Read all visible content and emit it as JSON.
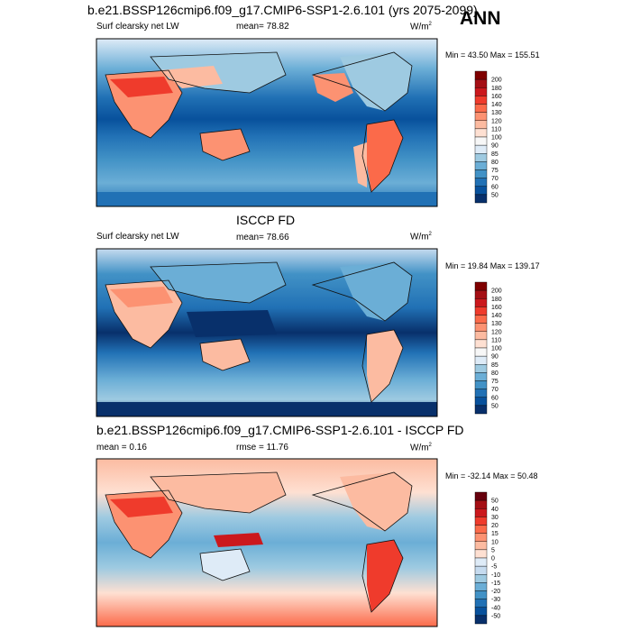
{
  "chart_data": [
    {
      "type": "heatmap",
      "title": "b.e21.BSSP126cmip6.f09_g17.CMIP6-SSP1-2.6.101 (yrs 2075-2099)",
      "variable": "Surf clearsky net LW",
      "mean": "mean=  78.82",
      "units": "W/m",
      "units_sup": "2",
      "minmax": "Min =  43.50 Max = 155.51",
      "colorbar_levels": [
        "200",
        "180",
        "160",
        "140",
        "130",
        "120",
        "110",
        "100",
        "90",
        "85",
        "80",
        "75",
        "70",
        "60",
        "50"
      ],
      "colorbar_colors": [
        "#7f0000",
        "#a50f15",
        "#cb181d",
        "#ef3b2c",
        "#fb6a4a",
        "#fc9272",
        "#fcbba1",
        "#fee0d2",
        "#f7f7f7",
        "#deebf7",
        "#9ecae1",
        "#6baed6",
        "#4292c6",
        "#2171b5",
        "#08519c",
        "#08306b"
      ]
    },
    {
      "type": "heatmap",
      "title": "ISCCP FD",
      "variable": "Surf clearsky net LW",
      "mean": "mean=  78.66",
      "units": "W/m",
      "units_sup": "2",
      "minmax": "Min =  19.84 Max = 139.17",
      "colorbar_levels": [
        "200",
        "180",
        "160",
        "140",
        "130",
        "120",
        "110",
        "100",
        "90",
        "85",
        "80",
        "75",
        "70",
        "60",
        "50"
      ],
      "colorbar_colors": [
        "#7f0000",
        "#a50f15",
        "#cb181d",
        "#ef3b2c",
        "#fb6a4a",
        "#fc9272",
        "#fcbba1",
        "#fee0d2",
        "#f7f7f7",
        "#deebf7",
        "#9ecae1",
        "#6baed6",
        "#4292c6",
        "#2171b5",
        "#08519c",
        "#08306b"
      ]
    },
    {
      "type": "heatmap",
      "title": "b.e21.BSSP126cmip6.f09_g17.CMIP6-SSP1-2.6.101 - ISCCP FD",
      "variable": "mean =   0.16",
      "mean": "rmse =  11.76",
      "units": "W/m",
      "units_sup": "2",
      "minmax": "Min = -32.14 Max =  50.48",
      "colorbar_levels": [
        "50",
        "40",
        "30",
        "20",
        "15",
        "10",
        "5",
        "0",
        "-5",
        "-10",
        "-15",
        "-20",
        "-30",
        "-40",
        "-50"
      ],
      "colorbar_colors": [
        "#67000d",
        "#a50f15",
        "#cb181d",
        "#ef3b2c",
        "#fb6a4a",
        "#fc9272",
        "#fcbba1",
        "#fee0d2",
        "#deebf7",
        "#c6dbef",
        "#9ecae1",
        "#6baed6",
        "#4292c6",
        "#2171b5",
        "#08519c",
        "#08306b"
      ]
    }
  ],
  "season": "ANN"
}
